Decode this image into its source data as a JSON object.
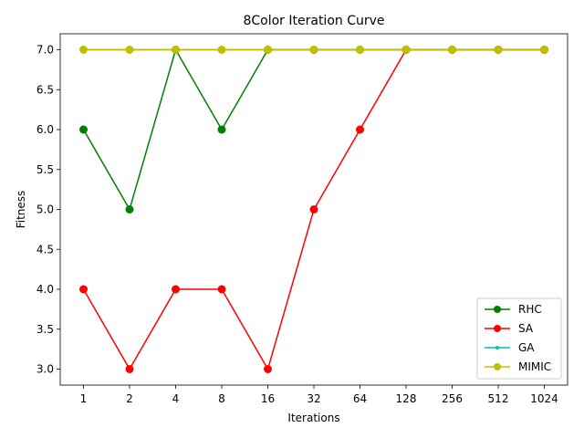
{
  "chart_data": {
    "type": "line",
    "title": "8Color Iteration Curve",
    "xlabel": "Iterations",
    "ylabel": "Fitness",
    "categories": [
      "1",
      "2",
      "4",
      "8",
      "16",
      "32",
      "64",
      "128",
      "256",
      "512",
      "1024"
    ],
    "ylim": [
      2.8,
      7.2
    ],
    "yticks": [
      3.0,
      3.5,
      4.0,
      4.5,
      5.0,
      5.5,
      6.0,
      6.5,
      7.0
    ],
    "ytick_labels": [
      "3.0",
      "3.5",
      "4.0",
      "4.5",
      "5.0",
      "5.5",
      "6.0",
      "6.5",
      "7.0"
    ],
    "grid": false,
    "legend_position": "lower-right",
    "series": [
      {
        "name": "RHC",
        "color": "#008000",
        "marker": "circle",
        "values": [
          6,
          5,
          7,
          6,
          7,
          7,
          7,
          7,
          7,
          7,
          7
        ]
      },
      {
        "name": "SA",
        "color": "#ff0000",
        "marker": "circle",
        "values": [
          4,
          3,
          4,
          4,
          3,
          5,
          6,
          7,
          7,
          7,
          7
        ]
      },
      {
        "name": "GA",
        "color": "#00bfbf",
        "marker": "point",
        "values": [
          7,
          7,
          7,
          7,
          7,
          7,
          7,
          7,
          7,
          7,
          7
        ]
      },
      {
        "name": "MIMIC",
        "color": "#bfbf00",
        "marker": "circle",
        "values": [
          7,
          7,
          7,
          7,
          7,
          7,
          7,
          7,
          7,
          7,
          7
        ]
      }
    ]
  }
}
